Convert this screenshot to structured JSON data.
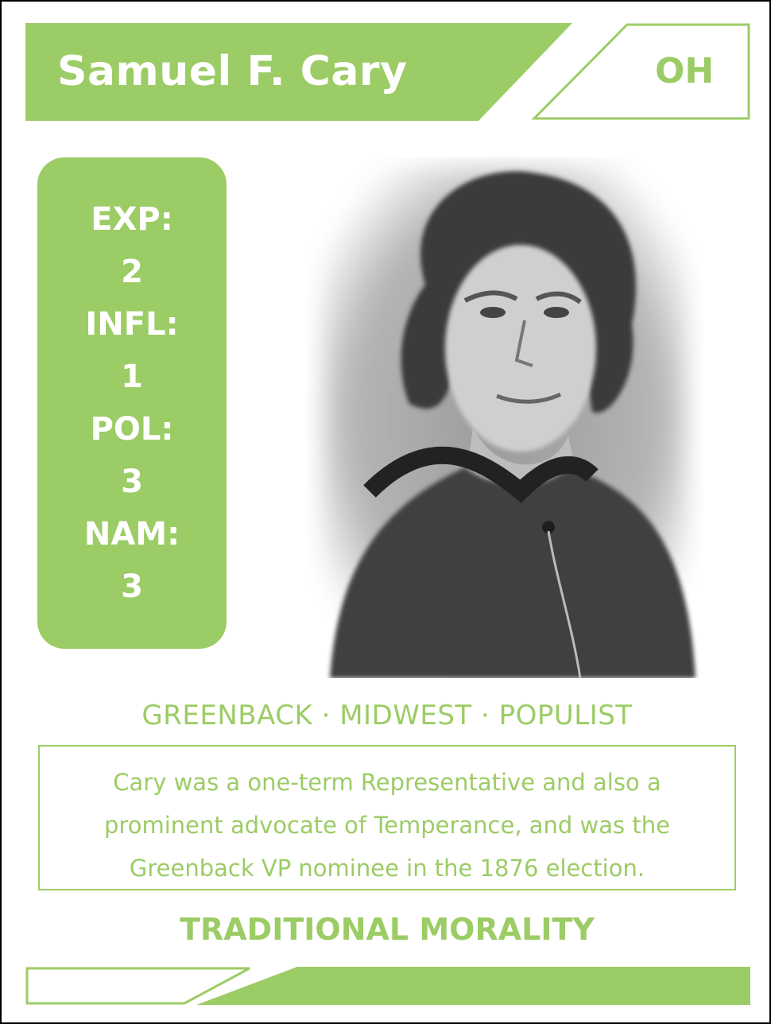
{
  "card": {
    "name": "Samuel F. Cary",
    "state": "OH",
    "accent_color": "#9ccc65",
    "stats": [
      {
        "label": "EXP:",
        "value": "2"
      },
      {
        "label": "INFL:",
        "value": "1"
      },
      {
        "label": "POL:",
        "value": "3"
      },
      {
        "label": "NAM:",
        "value": "3"
      }
    ],
    "tags": "GREENBACK · MIDWEST · POPULIST",
    "description_lines": [
      "Cary was a one-term Representative and also a",
      "prominent advocate of Temperance, and was the",
      "Greenback VP nominee in the 1876 election."
    ],
    "ideology": "TRADITIONAL MORALITY"
  }
}
